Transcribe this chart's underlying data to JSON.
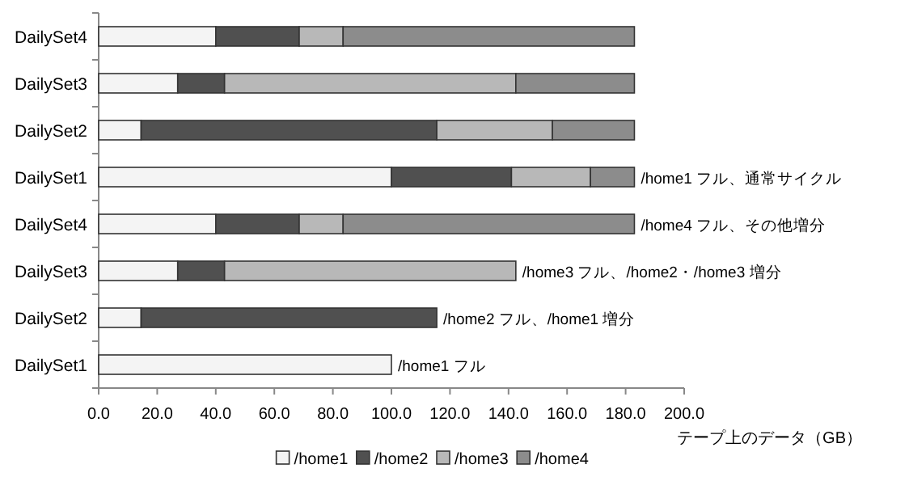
{
  "chart_data": {
    "type": "bar",
    "orientation": "horizontal",
    "stacked": true,
    "categories": [
      "DailySet4",
      "DailySet3",
      "DailySet2",
      "DailySet1",
      "DailySet4",
      "DailySet3",
      "DailySet2",
      "DailySet1"
    ],
    "series": [
      {
        "name": "/home1",
        "color": "#f4f4f4",
        "values": [
          40,
          27,
          14.5,
          100,
          40,
          27,
          14.5,
          100
        ]
      },
      {
        "name": "/home2",
        "color": "#505050",
        "values": [
          28.5,
          16,
          101,
          41,
          28.5,
          16,
          101,
          null
        ]
      },
      {
        "name": "/home3",
        "color": "#b8b8b8",
        "values": [
          15,
          99.5,
          39.5,
          27,
          15,
          99.5,
          null,
          null
        ]
      },
      {
        "name": "/home4",
        "color": "#8c8c8c",
        "values": [
          99.5,
          40.5,
          28,
          15,
          99.5,
          null,
          null,
          null
        ]
      }
    ],
    "xlim": [
      0,
      200
    ],
    "xticks": [
      {
        "value": 0,
        "label": "0.0"
      },
      {
        "value": 20,
        "label": "20.0"
      },
      {
        "value": 40,
        "label": "40.0"
      },
      {
        "value": 60,
        "label": "60.0"
      },
      {
        "value": 80,
        "label": "80.0"
      },
      {
        "value": 100,
        "label": "100.0"
      },
      {
        "value": 120,
        "label": "120.0"
      },
      {
        "value": 140,
        "label": "140.0"
      },
      {
        "value": 160,
        "label": "160.0"
      },
      {
        "value": 180,
        "label": "180.0"
      },
      {
        "value": 200,
        "label": "200.0"
      }
    ],
    "xlabel": "テープ上のデータ（GB）",
    "annotations": [
      "/home1 フル、通常サイクル",
      "/home4 フル、その他増分",
      "/home3 フル、/home2・/home3 増分",
      "/home2 フル、/home1 増分",
      "/home1 フル"
    ],
    "legend": "bottom",
    "grid": false
  }
}
